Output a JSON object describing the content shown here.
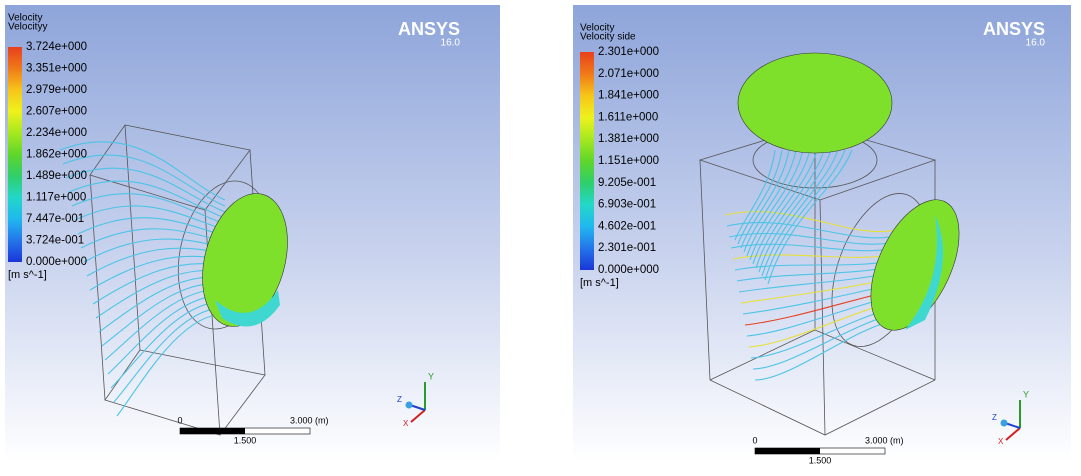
{
  "panels": [
    {
      "legend": {
        "title": "Velocity",
        "variable": "Velocityy",
        "labels": [
          "3.724e+000",
          "3.351e+000",
          "2.979e+000",
          "2.607e+000",
          "2.234e+000",
          "1.862e+000",
          "1.489e+000",
          "1.117e+000",
          "7.447e-001",
          "3.724e-001",
          "0.000e+000"
        ],
        "unit": "[m s^-1]"
      },
      "logo": {
        "brand": "ANSYS",
        "version": "16.0"
      },
      "scale": {
        "start": "0",
        "end": "3.000 (m)",
        "mid": "1.500"
      },
      "axes": {
        "y": "Y",
        "x": "X",
        "z": "Z"
      }
    },
    {
      "legend": {
        "title": "Velocity",
        "variable": "Velocity side",
        "labels": [
          "2.301e+000",
          "2.071e+000",
          "1.841e+000",
          "1.611e+000",
          "1.381e+000",
          "1.151e+000",
          "9.205e-001",
          "6.903e-001",
          "4.602e-001",
          "2.301e-001",
          "0.000e+000"
        ],
        "unit": "[m s^-1]"
      },
      "logo": {
        "brand": "ANSYS",
        "version": "16.0"
      },
      "scale": {
        "start": "0",
        "end": "3.000 (m)",
        "mid": "1.500"
      },
      "axes": {
        "y": "Y",
        "x": "X",
        "z": "Z"
      }
    }
  ]
}
